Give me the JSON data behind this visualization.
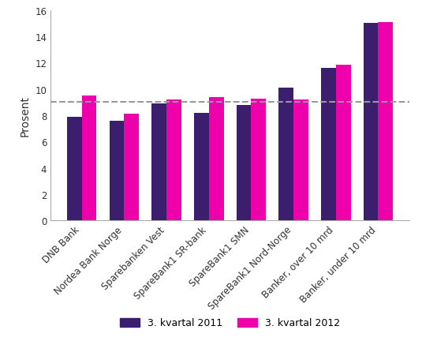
{
  "categories": [
    "DNB Bank",
    "Nordea Bank Norge",
    "Sparebanken Vest",
    "SpareBank1 SR-bank",
    "SpareBank1 SMN",
    "SpareBank1 Nord-Norge",
    "Banker, over 10 mrd",
    "Banker, under 10 mrd"
  ],
  "values_2011": [
    7.9,
    7.6,
    8.9,
    8.2,
    8.8,
    10.1,
    11.6,
    15.0
  ],
  "values_2012": [
    9.5,
    8.1,
    9.2,
    9.35,
    9.25,
    9.2,
    11.85,
    15.1
  ],
  "color_2011": "#3b1f6e",
  "color_2012": "#ee00aa",
  "ylabel": "Prosent",
  "ylim": [
    0,
    16
  ],
  "yticks": [
    0,
    2,
    4,
    6,
    8,
    10,
    12,
    14,
    16
  ],
  "hline_y": 9.0,
  "hline_color": "#999999",
  "legend_2011": "3. kvartal 2011",
  "legend_2012": "3. kvartal 2012",
  "bar_width": 0.35,
  "background_color": "#ffffff",
  "border_color": "#aaaaaa",
  "tick_label_fontsize": 8.5,
  "ylabel_fontsize": 10
}
